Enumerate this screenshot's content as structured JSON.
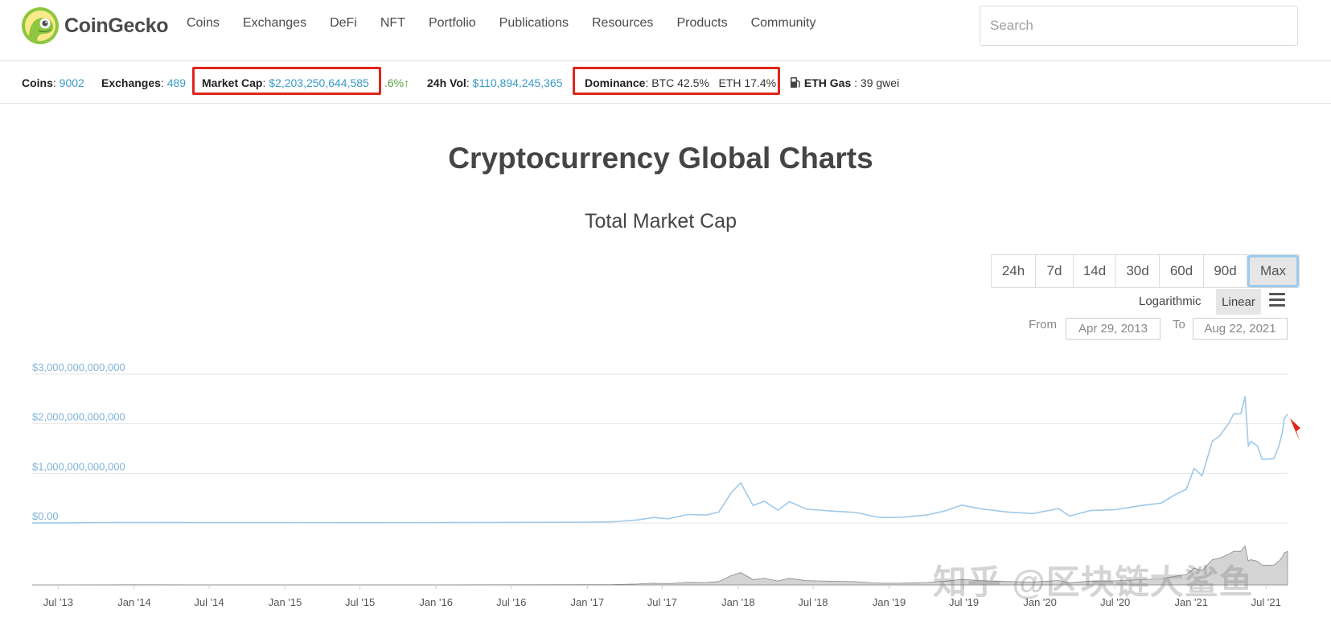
{
  "header": {
    "brand": "CoinGecko",
    "nav": [
      "Coins",
      "Exchanges",
      "DeFi",
      "NFT",
      "Portfolio",
      "Publications",
      "Resources",
      "Products",
      "Community"
    ],
    "search_placeholder": "Search"
  },
  "stats": {
    "coins_label": "Coins",
    "coins_value": "9002",
    "exchanges_label": "Exchanges",
    "exchanges_value": "489",
    "market_cap_label": "Market Cap",
    "market_cap_value": "$2,203,250,644,585",
    "market_cap_change": ".6%",
    "vol_label": "24h Vol",
    "vol_value": "$110,894,245,365",
    "dominance_label": "Dominance",
    "dominance_btc": "BTC 42.5%",
    "dominance_eth": "ETH 17.4%",
    "gas_label": "ETH Gas",
    "gas_value": "39 gwei"
  },
  "page": {
    "title": "Cryptocurrency Global Charts",
    "chart_title": "Total Market Cap"
  },
  "controls": {
    "ranges": [
      "24h",
      "7d",
      "14d",
      "30d",
      "60d",
      "90d",
      "Max"
    ],
    "active_range": "Max",
    "scale_log": "Logarithmic",
    "scale_linear": "Linear",
    "active_scale": "Linear",
    "from_label": "From",
    "from_value": "Apr 29, 2013",
    "to_label": "To",
    "to_value": "Aug 22, 2021"
  },
  "watermark": "知乎 @区块链大鲨鱼",
  "colors": {
    "accent_link": "#3a9bc8",
    "line": "#9ec9ea",
    "highlight_box": "#e0251b",
    "positive": "#5aa23c"
  },
  "chart_data": {
    "type": "line",
    "title": "Total Market Cap",
    "y_tick_labels": [
      "$3,000,000,000,000",
      "$2,000,000,000,000",
      "$1,000,000,000,000",
      "$0.00"
    ],
    "ylim": [
      0,
      3000000000000
    ],
    "x_tick_labels": [
      "Jul '13",
      "Jan '14",
      "Jul '14",
      "Jan '15",
      "Jul '15",
      "Jan '16",
      "Jul '16",
      "Jan '17",
      "Jul '17",
      "Jan '18",
      "Jul '18",
      "Jan '19",
      "Jul '19",
      "Jan '20",
      "Jul '20",
      "Jan '21",
      "Jul '21"
    ],
    "x_range": [
      "2013-04-29",
      "2021-08-22"
    ],
    "series": [
      {
        "x": [
          "2013-04-29",
          "2013-07-01",
          "2014-01-01",
          "2014-07-01",
          "2015-01-01",
          "2015-07-01",
          "2016-01-01",
          "2016-07-01",
          "2017-01-01",
          "2017-03-01",
          "2017-05-01",
          "2017-06-10",
          "2017-07-15",
          "2017-09-01",
          "2017-10-15",
          "2017-11-15",
          "2017-12-15",
          "2018-01-07",
          "2018-02-06",
          "2018-03-05",
          "2018-04-07",
          "2018-05-05",
          "2018-06-15",
          "2018-08-15",
          "2018-10-15",
          "2018-11-25",
          "2018-12-15",
          "2019-02-01",
          "2019-04-01",
          "2019-05-15",
          "2019-06-26",
          "2019-08-15",
          "2019-10-15",
          "2019-12-15",
          "2020-02-15",
          "2020-03-13",
          "2020-05-01",
          "2020-07-01",
          "2020-09-01",
          "2020-10-20",
          "2020-11-25",
          "2020-12-20",
          "2021-01-08",
          "2021-01-27",
          "2021-02-21",
          "2021-03-10",
          "2021-04-01",
          "2021-04-14",
          "2021-05-01",
          "2021-05-11",
          "2021-05-19",
          "2021-05-25",
          "2021-06-10",
          "2021-06-22",
          "2021-07-20",
          "2021-08-01",
          "2021-08-10",
          "2021-08-14",
          "2021-08-22"
        ],
        "values": [
          1500000000,
          1200000000,
          9000000000,
          7000000000,
          6000000000,
          4500000000,
          7000000000,
          12000000000,
          17000000000,
          22000000000,
          60000000000,
          110000000000,
          85000000000,
          170000000000,
          160000000000,
          220000000000,
          610000000000,
          810000000000,
          350000000000,
          440000000000,
          260000000000,
          430000000000,
          280000000000,
          240000000000,
          210000000000,
          130000000000,
          110000000000,
          115000000000,
          160000000000,
          240000000000,
          360000000000,
          280000000000,
          220000000000,
          190000000000,
          290000000000,
          140000000000,
          250000000000,
          270000000000,
          350000000000,
          400000000000,
          580000000000,
          680000000000,
          1100000000000,
          950000000000,
          1650000000000,
          1750000000000,
          2000000000000,
          2200000000000,
          2200000000000,
          2550000000000,
          1550000000000,
          1650000000000,
          1550000000000,
          1280000000000,
          1300000000000,
          1550000000000,
          1850000000000,
          2100000000000,
          2200000000000
        ]
      }
    ],
    "grid": true,
    "legend": "none"
  }
}
